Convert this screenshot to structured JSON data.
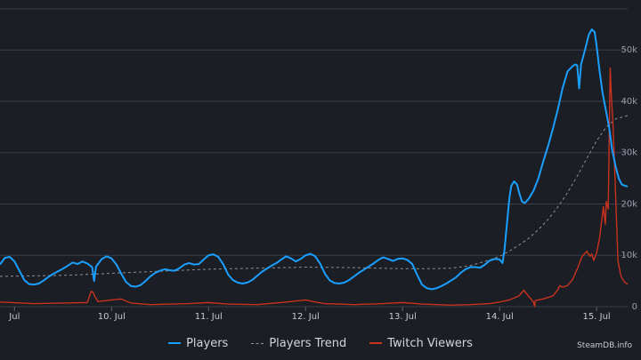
{
  "chart_data": {
    "type": "line",
    "title": "",
    "xlabel": "",
    "ylabel": "",
    "x_range": [
      8.85,
      15.32
    ],
    "ylim": [
      0,
      58000
    ],
    "x_ticks": [
      {
        "x": 9.0,
        "label": "Jul"
      },
      {
        "x": 10.0,
        "label": "10. Jul"
      },
      {
        "x": 11.0,
        "label": "11. Jul"
      },
      {
        "x": 12.0,
        "label": "12. Jul"
      },
      {
        "x": 13.0,
        "label": "13. Jul"
      },
      {
        "x": 14.0,
        "label": "14. Jul"
      },
      {
        "x": 15.0,
        "label": "15. Jul"
      }
    ],
    "y_ticks": [
      {
        "y": 0,
        "label": "0"
      },
      {
        "y": 10000,
        "label": "10k"
      },
      {
        "y": 20000,
        "label": "20k"
      },
      {
        "y": 30000,
        "label": "30k"
      },
      {
        "y": 40000,
        "label": "40k"
      },
      {
        "y": 50000,
        "label": "50k"
      }
    ],
    "grid": true,
    "legend_position": "bottom",
    "series": [
      {
        "name": "Players",
        "color": "#1a9fff",
        "style": "solid",
        "points": [
          [
            8.85,
            8200
          ],
          [
            8.9,
            9500
          ],
          [
            8.95,
            9700
          ],
          [
            9.0,
            8800
          ],
          [
            9.05,
            7000
          ],
          [
            9.1,
            5200
          ],
          [
            9.15,
            4400
          ],
          [
            9.2,
            4300
          ],
          [
            9.25,
            4500
          ],
          [
            9.3,
            5100
          ],
          [
            9.35,
            5800
          ],
          [
            9.4,
            6400
          ],
          [
            9.45,
            6900
          ],
          [
            9.5,
            7400
          ],
          [
            9.55,
            8000
          ],
          [
            9.6,
            8600
          ],
          [
            9.65,
            8300
          ],
          [
            9.7,
            8800
          ],
          [
            9.75,
            8400
          ],
          [
            9.8,
            7700
          ],
          [
            9.82,
            5000
          ],
          [
            9.84,
            7800
          ],
          [
            9.9,
            9300
          ],
          [
            9.95,
            9800
          ],
          [
            10.0,
            9400
          ],
          [
            10.05,
            8200
          ],
          [
            10.1,
            6400
          ],
          [
            10.15,
            4800
          ],
          [
            10.2,
            4000
          ],
          [
            10.25,
            3900
          ],
          [
            10.3,
            4200
          ],
          [
            10.35,
            5000
          ],
          [
            10.4,
            5900
          ],
          [
            10.45,
            6600
          ],
          [
            10.5,
            7000
          ],
          [
            10.55,
            7300
          ],
          [
            10.6,
            7100
          ],
          [
            10.65,
            7000
          ],
          [
            10.7,
            7500
          ],
          [
            10.75,
            8200
          ],
          [
            10.8,
            8500
          ],
          [
            10.85,
            8200
          ],
          [
            10.9,
            8300
          ],
          [
            10.95,
            9200
          ],
          [
            11.0,
            10000
          ],
          [
            11.05,
            10200
          ],
          [
            11.1,
            9700
          ],
          [
            11.15,
            8300
          ],
          [
            11.2,
            6300
          ],
          [
            11.25,
            5200
          ],
          [
            11.3,
            4700
          ],
          [
            11.35,
            4500
          ],
          [
            11.4,
            4700
          ],
          [
            11.45,
            5200
          ],
          [
            11.5,
            6000
          ],
          [
            11.55,
            6800
          ],
          [
            11.6,
            7400
          ],
          [
            11.65,
            8000
          ],
          [
            11.7,
            8500
          ],
          [
            11.75,
            9200
          ],
          [
            11.8,
            9800
          ],
          [
            11.85,
            9400
          ],
          [
            11.9,
            8800
          ],
          [
            11.95,
            9300
          ],
          [
            12.0,
            10000
          ],
          [
            12.05,
            10300
          ],
          [
            12.1,
            9800
          ],
          [
            12.15,
            8400
          ],
          [
            12.2,
            6400
          ],
          [
            12.25,
            5100
          ],
          [
            12.3,
            4600
          ],
          [
            12.35,
            4500
          ],
          [
            12.4,
            4700
          ],
          [
            12.45,
            5200
          ],
          [
            12.5,
            5900
          ],
          [
            12.55,
            6600
          ],
          [
            12.6,
            7200
          ],
          [
            12.65,
            7800
          ],
          [
            12.7,
            8400
          ],
          [
            12.75,
            9100
          ],
          [
            12.8,
            9600
          ],
          [
            12.85,
            9300
          ],
          [
            12.9,
            8900
          ],
          [
            12.95,
            9300
          ],
          [
            13.0,
            9400
          ],
          [
            13.05,
            9100
          ],
          [
            13.1,
            8300
          ],
          [
            13.15,
            6200
          ],
          [
            13.2,
            4300
          ],
          [
            13.25,
            3600
          ],
          [
            13.3,
            3400
          ],
          [
            13.35,
            3600
          ],
          [
            13.4,
            4000
          ],
          [
            13.45,
            4500
          ],
          [
            13.5,
            5100
          ],
          [
            13.55,
            5700
          ],
          [
            13.6,
            6600
          ],
          [
            13.65,
            7300
          ],
          [
            13.7,
            7700
          ],
          [
            13.75,
            7700
          ],
          [
            13.8,
            7600
          ],
          [
            13.85,
            8200
          ],
          [
            13.9,
            9000
          ],
          [
            13.95,
            9300
          ],
          [
            14.0,
            9200
          ],
          [
            14.03,
            8500
          ],
          [
            14.05,
            11000
          ],
          [
            14.08,
            17000
          ],
          [
            14.1,
            21000
          ],
          [
            14.12,
            23500
          ],
          [
            14.15,
            24400
          ],
          [
            14.18,
            23800
          ],
          [
            14.2,
            22300
          ],
          [
            14.23,
            20500
          ],
          [
            14.26,
            20200
          ],
          [
            14.3,
            21000
          ],
          [
            14.35,
            22600
          ],
          [
            14.4,
            25000
          ],
          [
            14.45,
            28300
          ],
          [
            14.5,
            31300
          ],
          [
            14.55,
            34700
          ],
          [
            14.6,
            38400
          ],
          [
            14.65,
            42600
          ],
          [
            14.7,
            45800
          ],
          [
            14.75,
            46800
          ],
          [
            14.78,
            47200
          ],
          [
            14.8,
            47000
          ],
          [
            14.82,
            42500
          ],
          [
            14.84,
            47200
          ],
          [
            14.88,
            50000
          ],
          [
            14.92,
            53000
          ],
          [
            14.95,
            54000
          ],
          [
            14.98,
            53500
          ],
          [
            15.0,
            50800
          ],
          [
            15.03,
            46000
          ],
          [
            15.06,
            41800
          ],
          [
            15.1,
            37800
          ],
          [
            15.13,
            34800
          ],
          [
            15.16,
            30600
          ],
          [
            15.2,
            27000
          ],
          [
            15.23,
            24900
          ],
          [
            15.26,
            23800
          ],
          [
            15.3,
            23500
          ],
          [
            15.32,
            23400
          ]
        ]
      },
      {
        "name": "Players Trend",
        "color": "#8b9099",
        "style": "dashed",
        "points": [
          [
            8.85,
            5900
          ],
          [
            9.5,
            6100
          ],
          [
            10.0,
            6500
          ],
          [
            10.5,
            6900
          ],
          [
            11.0,
            7300
          ],
          [
            11.5,
            7500
          ],
          [
            12.0,
            7700
          ],
          [
            12.5,
            7600
          ],
          [
            13.0,
            7400
          ],
          [
            13.3,
            7400
          ],
          [
            13.5,
            7500
          ],
          [
            13.7,
            8000
          ],
          [
            13.9,
            9100
          ],
          [
            14.0,
            9800
          ],
          [
            14.1,
            10800
          ],
          [
            14.2,
            12000
          ],
          [
            14.3,
            13300
          ],
          [
            14.4,
            15000
          ],
          [
            14.5,
            17000
          ],
          [
            14.6,
            19400
          ],
          [
            14.7,
            22200
          ],
          [
            14.8,
            25400
          ],
          [
            14.9,
            28900
          ],
          [
            15.0,
            32300
          ],
          [
            15.1,
            35000
          ],
          [
            15.2,
            36600
          ],
          [
            15.3,
            37100
          ],
          [
            15.32,
            37200
          ]
        ]
      },
      {
        "name": "Twitch Viewers",
        "color": "#c8321e",
        "style": "solid",
        "points": [
          [
            8.85,
            900
          ],
          [
            9.2,
            600
          ],
          [
            9.5,
            700
          ],
          [
            9.75,
            800
          ],
          [
            9.79,
            3000
          ],
          [
            9.81,
            2800
          ],
          [
            9.83,
            1900
          ],
          [
            9.86,
            1000
          ],
          [
            9.95,
            1200
          ],
          [
            10.1,
            1500
          ],
          [
            10.2,
            700
          ],
          [
            10.4,
            400
          ],
          [
            10.8,
            600
          ],
          [
            11.0,
            800
          ],
          [
            11.2,
            500
          ],
          [
            11.5,
            400
          ],
          [
            11.8,
            900
          ],
          [
            12.0,
            1300
          ],
          [
            12.1,
            900
          ],
          [
            12.2,
            600
          ],
          [
            12.5,
            400
          ],
          [
            12.8,
            600
          ],
          [
            13.0,
            800
          ],
          [
            13.2,
            500
          ],
          [
            13.5,
            300
          ],
          [
            13.7,
            400
          ],
          [
            13.9,
            600
          ],
          [
            14.0,
            900
          ],
          [
            14.1,
            1300
          ],
          [
            14.2,
            2100
          ],
          [
            14.25,
            3200
          ],
          [
            14.3,
            2000
          ],
          [
            14.35,
            900
          ],
          [
            14.36,
            0
          ],
          [
            14.37,
            1200
          ],
          [
            14.45,
            1500
          ],
          [
            14.55,
            2100
          ],
          [
            14.6,
            3300
          ],
          [
            14.62,
            4100
          ],
          [
            14.65,
            3800
          ],
          [
            14.7,
            4100
          ],
          [
            14.75,
            5200
          ],
          [
            14.8,
            7300
          ],
          [
            14.85,
            9800
          ],
          [
            14.9,
            10800
          ],
          [
            14.93,
            9800
          ],
          [
            14.95,
            10300
          ],
          [
            14.97,
            9000
          ],
          [
            15.0,
            10500
          ],
          [
            15.03,
            13300
          ],
          [
            15.05,
            16400
          ],
          [
            15.07,
            19500
          ],
          [
            15.09,
            16000
          ],
          [
            15.1,
            20500
          ],
          [
            15.12,
            19000
          ],
          [
            15.14,
            46500
          ],
          [
            15.15,
            42000
          ],
          [
            15.17,
            35000
          ],
          [
            15.19,
            25000
          ],
          [
            15.22,
            9000
          ],
          [
            15.25,
            6000
          ],
          [
            15.28,
            5000
          ],
          [
            15.3,
            4600
          ],
          [
            15.32,
            4400
          ]
        ]
      }
    ]
  },
  "legend": {
    "items": [
      {
        "label": "Players"
      },
      {
        "label": "Players Trend"
      },
      {
        "label": "Twitch Viewers"
      }
    ]
  },
  "watermark": {
    "text": "SteamDB.info"
  }
}
